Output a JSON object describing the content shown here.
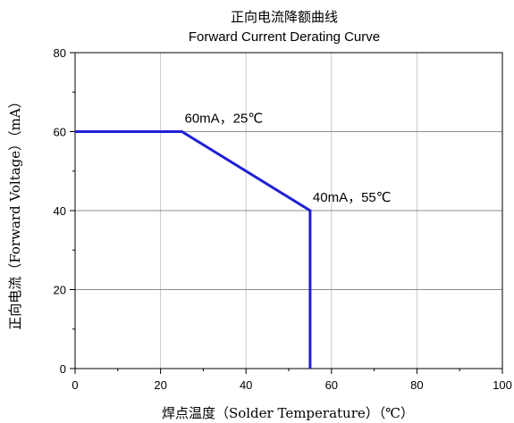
{
  "chart_data": {
    "type": "line",
    "title": "正向电流降额曲线",
    "subtitle": "Forward Current Derating Curve",
    "xlabel": "焊点温度（Solder Temperature）（℃）",
    "ylabel": "正向电流（Forward Voltage）（mA）",
    "xlim": [
      0,
      100
    ],
    "ylim": [
      0,
      80
    ],
    "x_ticks": [
      0,
      20,
      40,
      60,
      80,
      100
    ],
    "y_ticks": [
      0,
      20,
      40,
      60,
      80
    ],
    "grid": true,
    "series": [
      {
        "color": "#1f1fd6",
        "points": [
          [
            0,
            60
          ],
          [
            25,
            60
          ],
          [
            55,
            40
          ],
          [
            55,
            0
          ]
        ]
      }
    ],
    "annotations": [
      {
        "text": "60mA，25℃",
        "x": 25,
        "y": 60
      },
      {
        "text": "40mA，55℃",
        "x": 55,
        "y": 40
      }
    ]
  }
}
